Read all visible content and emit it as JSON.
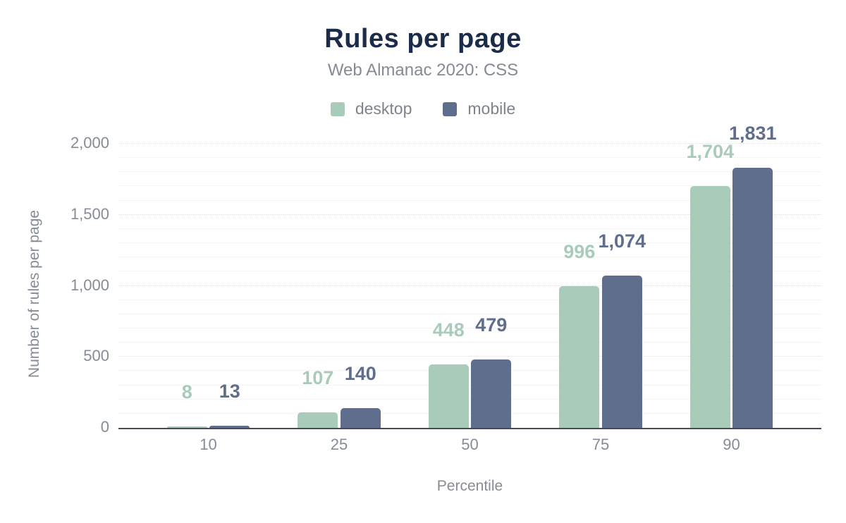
{
  "header": {
    "title": "Rules per page",
    "subtitle": "Web Almanac 2020: CSS"
  },
  "chart_data": {
    "type": "bar",
    "title": "Rules per page",
    "subtitle": "Web Almanac 2020: CSS",
    "xlabel": "Percentile",
    "ylabel": "Number of rules per page",
    "categories": [
      "10",
      "25",
      "50",
      "75",
      "90"
    ],
    "series": [
      {
        "name": "desktop",
        "color": "#a9cbb9",
        "values": [
          8,
          107,
          448,
          996,
          1704
        ],
        "value_labels": [
          "8",
          "107",
          "448",
          "996",
          "1,704"
        ]
      },
      {
        "name": "mobile",
        "color": "#5f6e8c",
        "values": [
          13,
          140,
          479,
          1074,
          1831
        ],
        "value_labels": [
          "13",
          "140",
          "479",
          "1,074",
          "1,831"
        ]
      }
    ],
    "ylim": [
      0,
      2000
    ],
    "yticks": [
      {
        "value": 0,
        "label": "0"
      },
      {
        "value": 500,
        "label": "500"
      },
      {
        "value": 1000,
        "label": "1,000"
      },
      {
        "value": 1500,
        "label": "1,500"
      },
      {
        "value": 2000,
        "label": "2,000"
      }
    ],
    "grid": {
      "minor_step": 100,
      "major_step": 500,
      "major_style": "dotted"
    },
    "legend_position": "top",
    "colors": {
      "title": "#1b2b4a",
      "subtitle": "#848b94",
      "axis_text": "#868c95",
      "baseline": "#454a54"
    }
  }
}
